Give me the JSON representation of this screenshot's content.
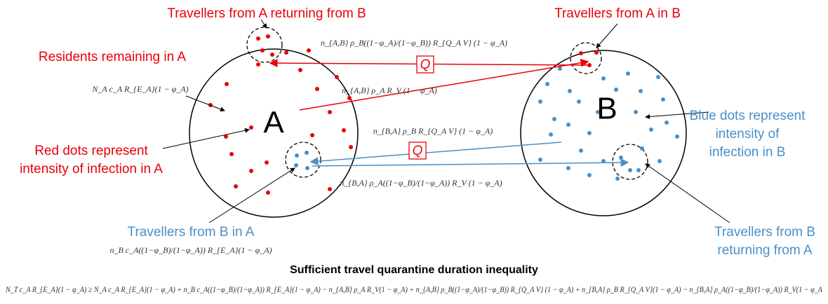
{
  "labels": {
    "returning_a": "Travellers from A returning from B",
    "travellers_a_in_b": "Travellers from A in B",
    "residents_a": "Residents remaining in A",
    "red_dots_1": "Red dots represent",
    "red_dots_2": "intensity of infection in A",
    "blue_dots_1": "Blue dots represent",
    "blue_dots_2": "intensity of",
    "blue_dots_3": "infection in B",
    "travellers_b_in_a": "Travellers from B in A",
    "returning_b_1": "Travellers from B",
    "returning_b_2": "returning from A"
  },
  "circles": [
    "A",
    "B"
  ],
  "quarantine_boxes": [
    "Q",
    "Q"
  ],
  "formulas": {
    "residents_a": "N_A c_A R_{E_A}(1 − φ_A)",
    "return_a_quarantined": "n_{A,B} ρ_B((1−φ_A)/(1−φ_B)) R_{Q_A V} (1 − φ_A)",
    "a_to_b": "n_{A,B} ρ_A R_V (1 − φ_A)",
    "b_to_a_quarantined": "n_{B,A} ρ_B R_{Q_A V} (1 − φ_A)",
    "return_b": "n_{B,A} ρ_A((1−φ_B)/(1−φ_A)) R_V (1 − φ_A)",
    "travellers_b_in_a": "n_B c_A((1−φ_B)/(1−φ_A)) R_{E_A}(1 − φ_A)"
  },
  "inequality": {
    "title": "Sufficient travel quarantine duration inequality",
    "text": "N_T c_A R_{E_A}(1 − φ_A)  ≥  N_A c_A R_{E_A}(1 − φ_A)  + n_B c_A((1−φ_B)/(1−φ_A)) R_{E_A}(1 − φ_A) − n_{A,B} ρ_A R_V(1 − φ_A)  + n_{A,B} ρ_B((1−φ_A)/(1−φ_B)) R_{Q_A V} (1 − φ_A)  + n_{B,A} ρ_B R_{Q_A V}(1 − φ_A)  − n_{B,A} ρ_A((1−φ_B)/(1−φ_A)) R_V(1 − φ_A"
  }
}
